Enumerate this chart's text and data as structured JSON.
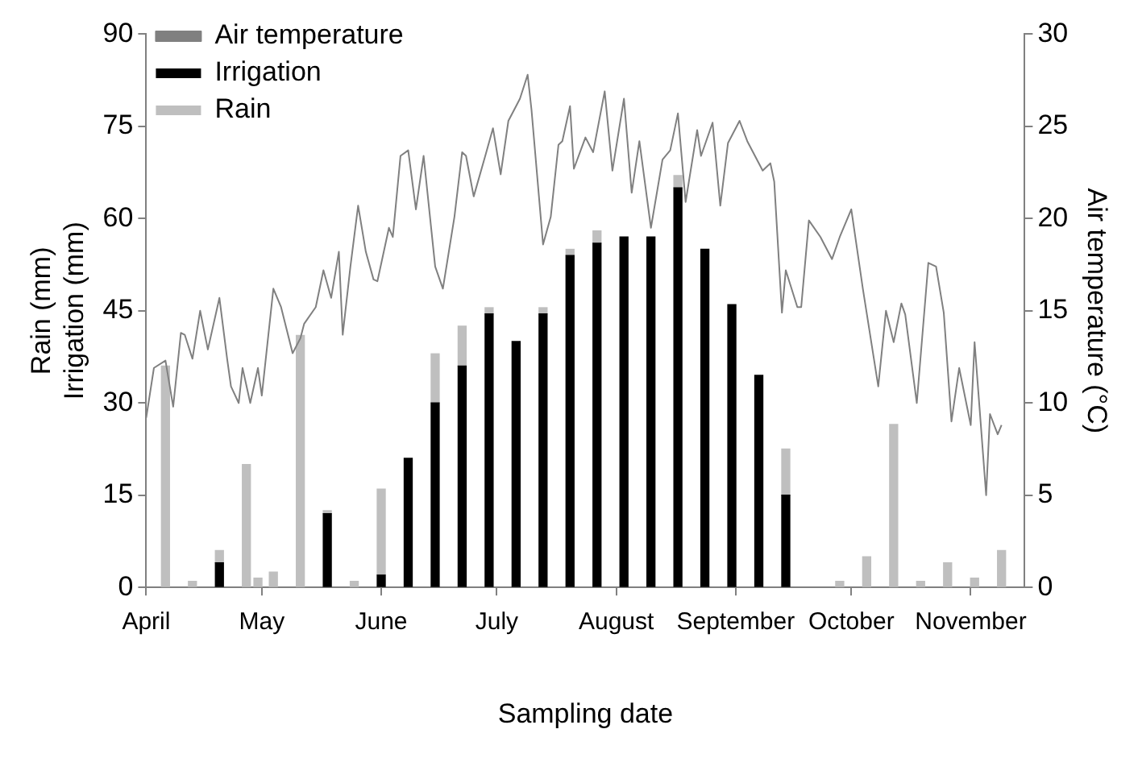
{
  "chart_data": {
    "type": "bar",
    "stacked": true,
    "xlabel": "Sampling date",
    "ylabel": "Rain (mm)\nIrrigation (mm)",
    "y2label": "Air temperature (°C)",
    "x": [
      "--04-06",
      "--04-13",
      "--04-20",
      "--04-27",
      "--04-30",
      "--05-04",
      "--05-11",
      "--05-18",
      "--05-25",
      "--06-01",
      "--06-08",
      "--06-15",
      "--06-22",
      "--06-29",
      "--07-06",
      "--07-13",
      "--07-20",
      "--07-27",
      "--08-03",
      "--08-10",
      "--08-17",
      "--08-24",
      "--08-31",
      "--09-07",
      "--09-14",
      "--09-28",
      "--10-05",
      "--10-12",
      "--10-19",
      "--10-26",
      "--11-02",
      "--11-09"
    ],
    "xlim": [
      "--04-01",
      "--11-15"
    ],
    "xticks": [
      {
        "value": "--04-01",
        "label": "April"
      },
      {
        "value": "--05-01",
        "label": "May"
      },
      {
        "value": "--06-01",
        "label": "June"
      },
      {
        "value": "--07-01",
        "label": "July"
      },
      {
        "value": "--08-01",
        "label": "August"
      },
      {
        "value": "--09-01",
        "label": "September"
      },
      {
        "value": "--10-01",
        "label": "October"
      },
      {
        "value": "--11-01",
        "label": "November"
      }
    ],
    "ylim": [
      0,
      90
    ],
    "yticks": [
      0,
      15,
      30,
      45,
      60,
      75,
      90
    ],
    "y2lim": [
      0,
      30
    ],
    "y2ticks": [
      0,
      5,
      10,
      15,
      20,
      25,
      30
    ],
    "legend": "top left",
    "grid": false,
    "series": [
      {
        "name": "Air temperature",
        "type": "line",
        "axis": "y2",
        "color": "#808080",
        "line_style": "solid",
        "x": [
          "--04-01",
          "--04-03",
          "--04-06",
          "--04-08",
          "--04-10",
          "--04-11",
          "--04-13",
          "--04-15",
          "--04-17",
          "--04-20",
          "--04-22",
          "--04-23",
          "--04-25",
          "--04-26",
          "--04-28",
          "--04-30",
          "--05-01",
          "--05-04",
          "--05-06",
          "--05-09",
          "--05-11",
          "--05-12",
          "--05-15",
          "--05-17",
          "--05-19",
          "--05-21",
          "--05-22",
          "--05-24",
          "--05-26",
          "--05-28",
          "--05-30",
          "--05-31",
          "--06-03",
          "--06-04",
          "--06-06",
          "--06-08",
          "--06-10",
          "--06-12",
          "--06-15",
          "--06-17",
          "--06-20",
          "--06-22",
          "--06-23",
          "--06-25",
          "--06-28",
          "--06-30",
          "--07-02",
          "--07-04",
          "--07-06",
          "--07-07",
          "--07-09",
          "--07-10",
          "--07-13",
          "--07-15",
          "--07-17",
          "--07-18",
          "--07-20",
          "--07-21",
          "--07-24",
          "--07-26",
          "--07-29",
          "--07-31",
          "--08-03",
          "--08-05",
          "--08-07",
          "--08-10",
          "--08-13",
          "--08-15",
          "--08-17",
          "--08-19",
          "--08-22",
          "--08-23",
          "--08-26",
          "--08-28",
          "--08-30",
          "--09-02",
          "--09-04",
          "--09-06",
          "--09-08",
          "--09-10",
          "--09-11",
          "--09-13",
          "--09-14",
          "--09-17",
          "--09-18",
          "--09-20",
          "--09-23",
          "--09-26",
          "--09-28",
          "--10-01",
          "--10-04",
          "--10-08",
          "--10-10",
          "--10-12",
          "--10-14",
          "--10-15",
          "--10-18",
          "--10-21",
          "--10-23",
          "--10-25",
          "--10-27",
          "--10-29",
          "--11-01",
          "--11-02",
          "--11-05",
          "--11-06",
          "--11-08",
          "--11-09"
        ],
        "values": [
          9.2,
          11.9,
          12.3,
          9.8,
          13.8,
          13.7,
          12.4,
          15.0,
          12.9,
          15.7,
          12.4,
          10.9,
          10.0,
          11.9,
          10.0,
          11.9,
          10.4,
          16.2,
          15.2,
          12.7,
          13.5,
          14.3,
          15.2,
          17.2,
          15.7,
          18.2,
          13.7,
          17.4,
          20.7,
          18.2,
          16.7,
          16.6,
          19.5,
          19.0,
          23.4,
          23.7,
          20.5,
          23.4,
          17.4,
          16.2,
          20.1,
          23.6,
          23.4,
          21.2,
          23.4,
          24.9,
          22.4,
          25.3,
          26.1,
          26.5,
          27.8,
          25.9,
          18.6,
          20.1,
          24.0,
          24.2,
          26.1,
          22.7,
          24.4,
          23.6,
          26.9,
          22.6,
          26.5,
          21.4,
          24.2,
          19.5,
          23.2,
          23.7,
          25.7,
          20.9,
          24.8,
          23.4,
          25.2,
          20.7,
          24.1,
          25.3,
          24.2,
          23.4,
          22.6,
          23.0,
          22.0,
          14.9,
          17.2,
          15.2,
          15.2,
          19.9,
          19.0,
          17.8,
          19.0,
          20.5,
          16.2,
          10.9,
          15.0,
          13.3,
          15.4,
          14.8,
          10.0,
          17.6,
          17.4,
          14.9,
          9.0,
          11.9,
          8.8,
          13.3,
          5.0,
          9.4,
          8.3,
          8.8
        ]
      },
      {
        "name": "Irrigation",
        "color": "#000000",
        "values": [
          null,
          null,
          4,
          null,
          null,
          null,
          null,
          12,
          null,
          2,
          21,
          30,
          36,
          44.5,
          40,
          44.5,
          54,
          56,
          57,
          57,
          65,
          55,
          46,
          34.5,
          15,
          null,
          null,
          null,
          null,
          null,
          null,
          null
        ]
      },
      {
        "name": "Rain",
        "color": "#bfbfbf",
        "values": [
          36,
          1,
          2,
          20,
          1.5,
          2.5,
          41,
          0.5,
          1,
          14,
          null,
          8,
          6.5,
          1,
          null,
          1,
          1,
          2,
          null,
          null,
          2,
          null,
          null,
          null,
          7.5,
          1,
          5,
          26.5,
          1,
          4,
          1.5,
          6
        ]
      }
    ]
  }
}
